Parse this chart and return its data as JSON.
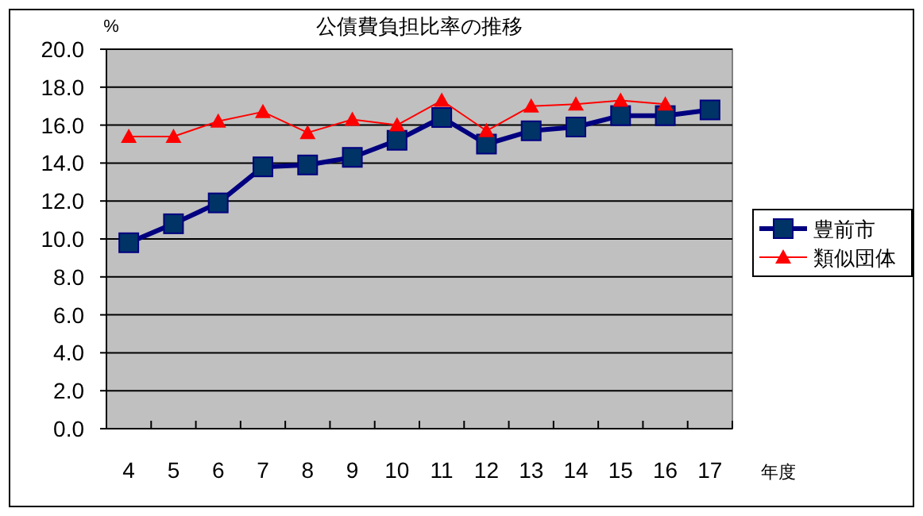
{
  "chart_data": {
    "type": "line",
    "title": "公債費負担比率の推移",
    "xlabel": "年度",
    "ylabel": "%",
    "categories": [
      "4",
      "5",
      "6",
      "7",
      "8",
      "9",
      "10",
      "11",
      "12",
      "13",
      "14",
      "15",
      "16",
      "17"
    ],
    "series": [
      {
        "name": "豊前市",
        "color": "#000080",
        "marker": "square",
        "values": [
          9.8,
          10.8,
          11.9,
          13.8,
          13.9,
          14.3,
          15.2,
          16.4,
          15.0,
          15.7,
          15.9,
          16.5,
          16.5,
          16.8
        ]
      },
      {
        "name": "類似団体",
        "color": "#ff0000",
        "marker": "triangle",
        "values": [
          15.4,
          15.4,
          16.2,
          16.7,
          15.6,
          16.3,
          16.0,
          17.3,
          15.7,
          17.0,
          17.1,
          17.3,
          17.1,
          null
        ]
      }
    ],
    "ylim": [
      0,
      20
    ],
    "yticks": [
      {
        "value": 0,
        "label": "0.0"
      },
      {
        "value": 2,
        "label": "2.0"
      },
      {
        "value": 4,
        "label": "4.0"
      },
      {
        "value": 6,
        "label": "6.0"
      },
      {
        "value": 8,
        "label": "8.0"
      },
      {
        "value": 10,
        "label": "10.0"
      },
      {
        "value": 12,
        "label": "12.0"
      },
      {
        "value": 14,
        "label": "14.0"
      },
      {
        "value": 16,
        "label": "16.0"
      },
      {
        "value": 18,
        "label": "18.0"
      },
      {
        "value": 20,
        "label": "20.0"
      }
    ],
    "grid": "y",
    "legend": "right"
  }
}
